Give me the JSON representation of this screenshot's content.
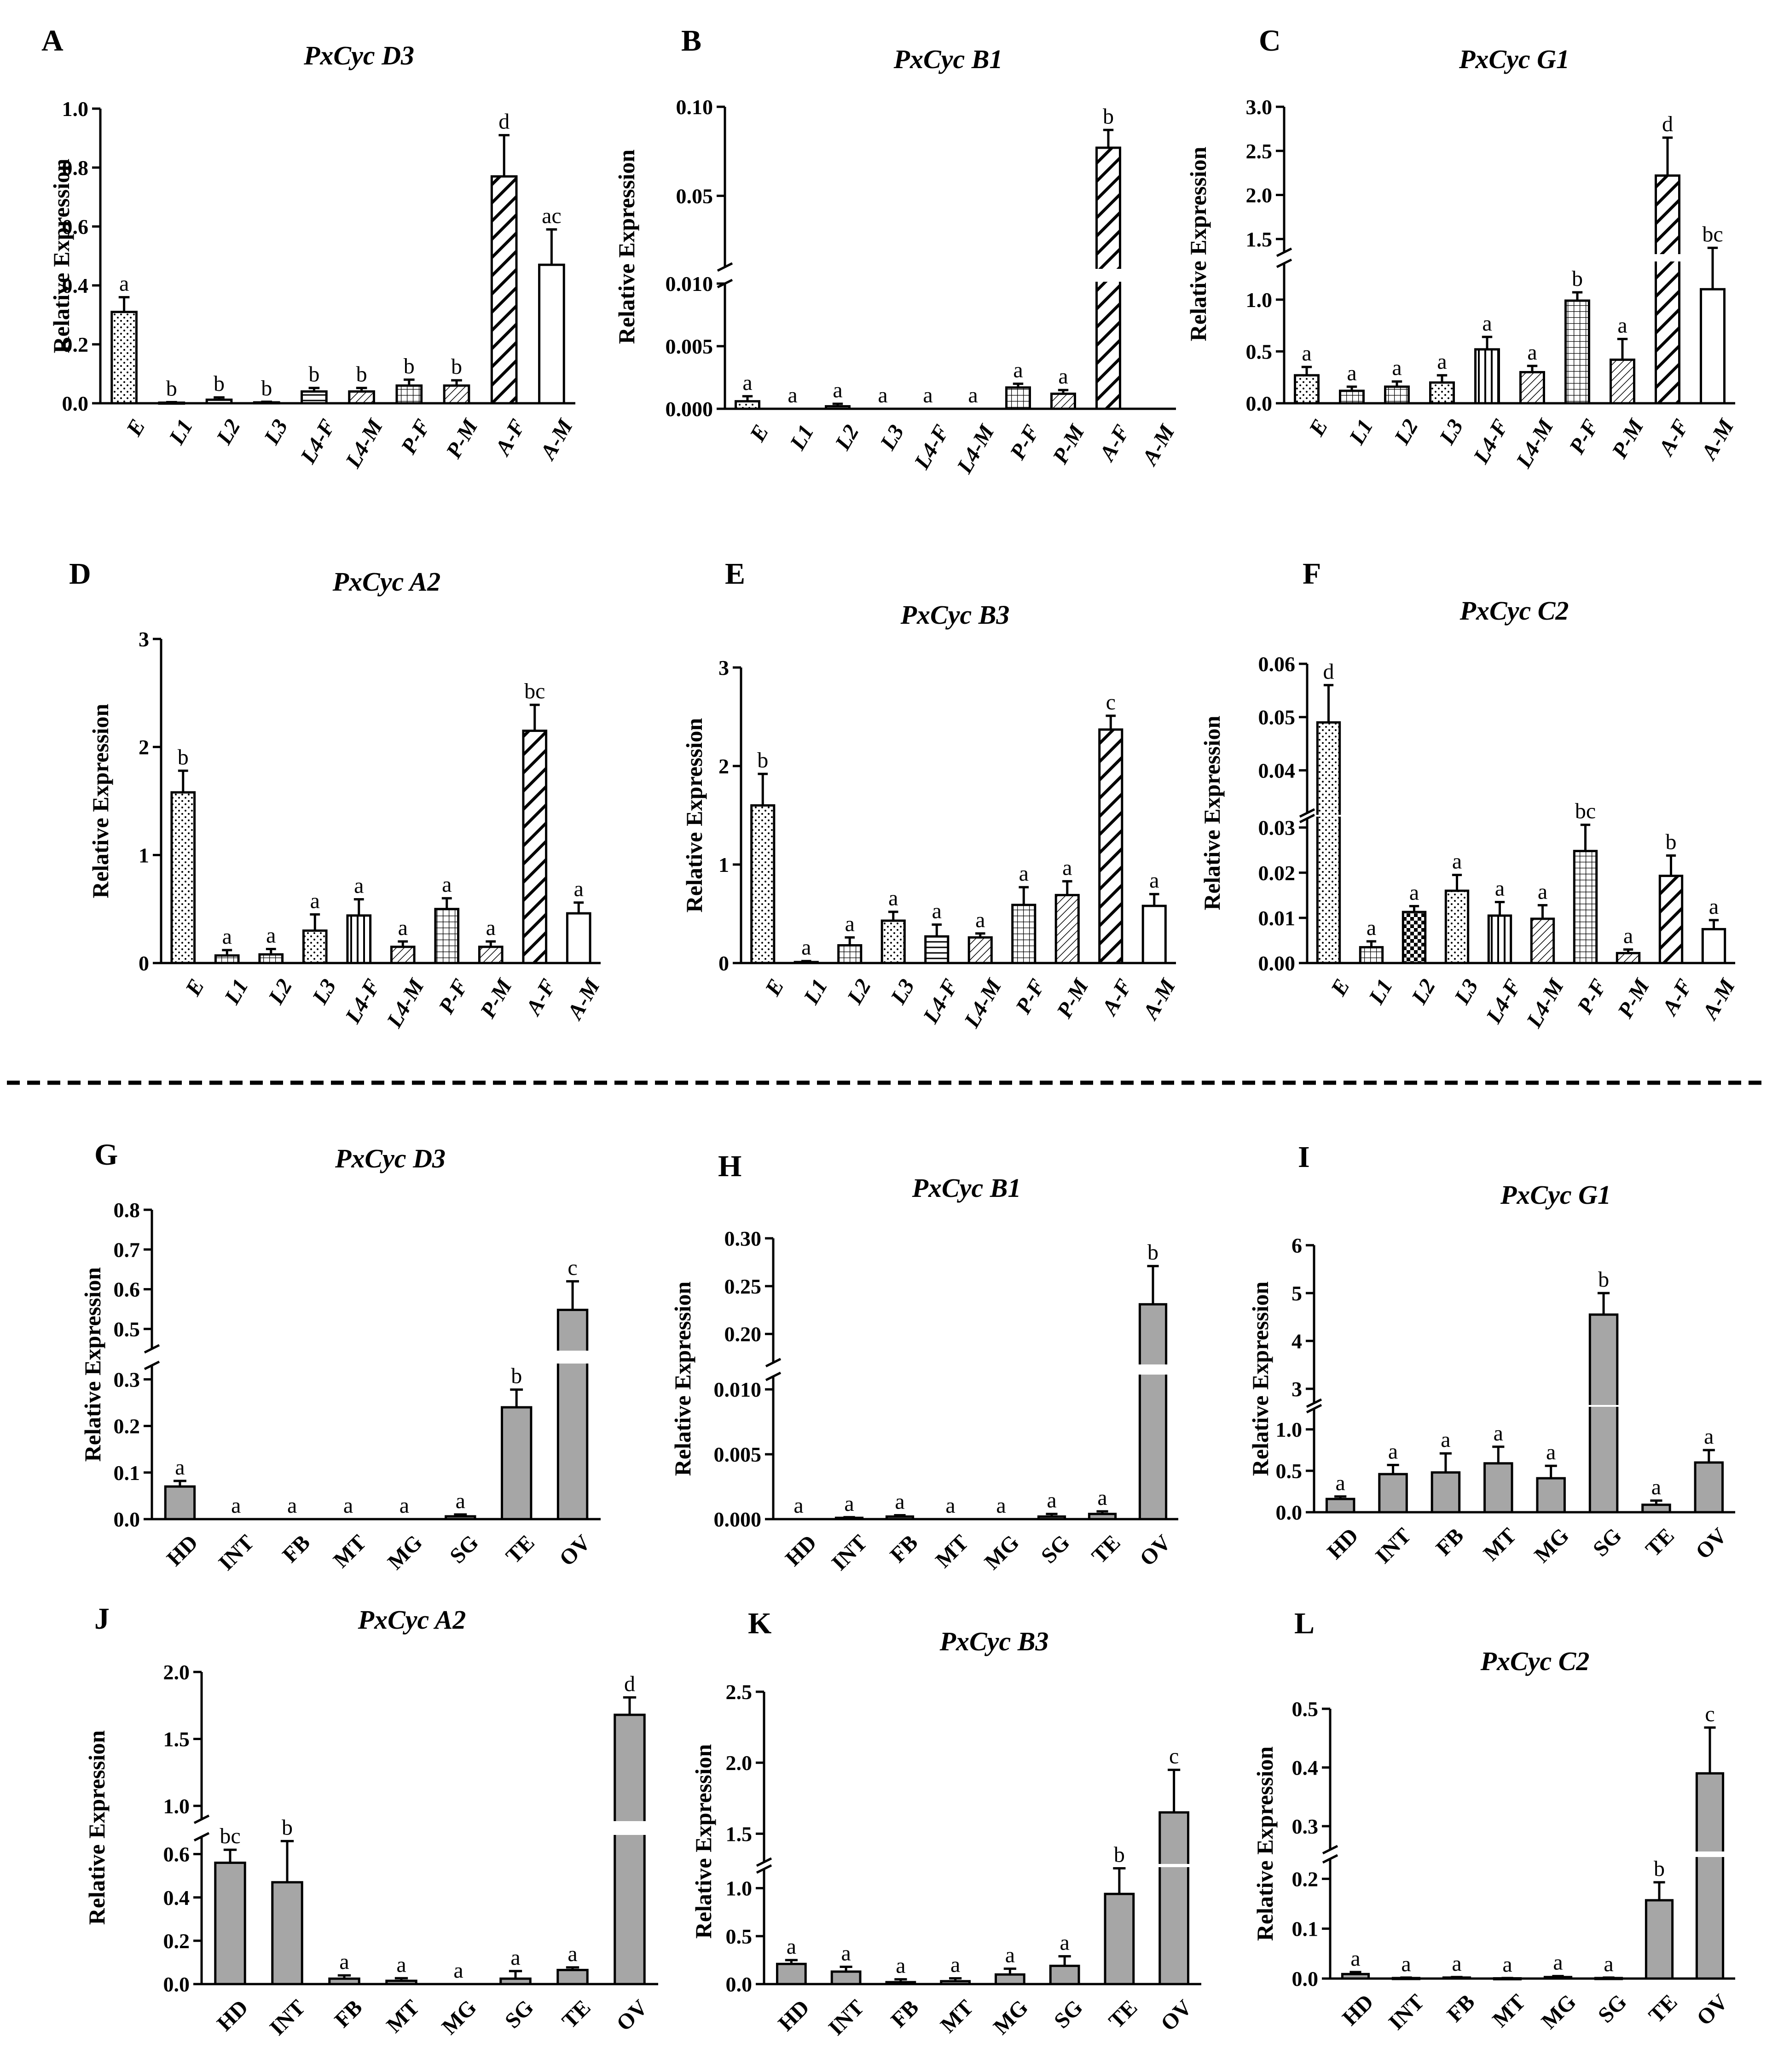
{
  "figure": {
    "colors": {
      "gray": "#a6a6a6",
      "white": "#ffffff",
      "ink": "#000000"
    }
  },
  "chart_data": [
    {
      "panel": "A",
      "type": "bar",
      "title": "PxCyc D3",
      "ylabel": "Relative Expression",
      "categories": [
        "E",
        "L1",
        "L2",
        "L3",
        "L4-F",
        "L4-M",
        "P-F",
        "P-M",
        "A-F",
        "A-M"
      ],
      "values": [
        0.31,
        0.002,
        0.012,
        0.003,
        0.04,
        0.04,
        0.06,
        0.06,
        0.77,
        0.47
      ],
      "errors": [
        0.05,
        0.002,
        0.008,
        0.002,
        0.012,
        0.012,
        0.02,
        0.018,
        0.14,
        0.12
      ],
      "labels": [
        "a",
        "b",
        "b",
        "b",
        "b",
        "b",
        "b",
        "b",
        "d",
        "ac"
      ],
      "patterns": [
        "dots",
        "plain",
        "plain",
        "plain",
        "hlines",
        "diag",
        "grid",
        "diag",
        "heavydiag",
        "plain"
      ],
      "ylim": [
        0,
        1.0
      ],
      "ticks": [
        "0.0",
        "0.2",
        "0.4",
        "0.6",
        "0.8",
        "1.0"
      ]
    },
    {
      "panel": "B",
      "type": "bar",
      "title": "PxCyc B1",
      "ylabel": "Relative Expression",
      "categories": [
        "E",
        "L1",
        "L2",
        "L3",
        "L4-F",
        "L4-M",
        "P-F",
        "P-M",
        "A-F",
        "A-M"
      ],
      "values": [
        0.0006,
        0,
        0.0002,
        0,
        0,
        0,
        0.0017,
        0.0012,
        0.077,
        0
      ],
      "errors": [
        0.0004,
        0,
        0.0002,
        0,
        0,
        0,
        0.0003,
        0.0003,
        0.01,
        0
      ],
      "labels": [
        "a",
        "a",
        "a",
        "a",
        "a",
        "a",
        "a",
        "a",
        "b",
        ""
      ],
      "patterns": [
        "dots",
        "plain",
        "plain",
        "plain",
        "hlines",
        "diag",
        "grid",
        "diag",
        "heavydiag",
        "plain"
      ],
      "ylim": [
        0,
        0.1
      ],
      "lower_range": [
        0,
        0.01
      ],
      "upper_range": [
        0.01,
        0.1
      ],
      "lower_ticks": [
        "0.000",
        "0.005",
        "0.010"
      ],
      "upper_ticks": [
        "0.05",
        "0.10"
      ]
    },
    {
      "panel": "C",
      "type": "bar",
      "title": "PxCyc G1",
      "ylabel": "Relative Expression",
      "categories": [
        "E",
        "L1",
        "L2",
        "L3",
        "L4-F",
        "L4-M",
        "P-F",
        "P-M",
        "A-F",
        "A-M"
      ],
      "values": [
        0.27,
        0.12,
        0.16,
        0.2,
        0.52,
        0.3,
        0.99,
        0.42,
        2.22,
        1.1
      ],
      "errors": [
        0.08,
        0.04,
        0.05,
        0.07,
        0.12,
        0.06,
        0.08,
        0.2,
        0.43,
        0.3
      ],
      "labels": [
        "a",
        "a",
        "a",
        "a",
        "a",
        "a",
        "b",
        "a",
        "d",
        "bc"
      ],
      "patterns": [
        "dots",
        "grid",
        "grid",
        "dots",
        "vlines",
        "diag",
        "grid",
        "diag",
        "heavydiag",
        "plain"
      ],
      "ylim": [
        0,
        3.0
      ],
      "lower_range": [
        0,
        1.35
      ],
      "upper_range": [
        1.35,
        3.0
      ],
      "lower_ticks": [
        "0.0",
        "0.5",
        "1.0"
      ],
      "upper_ticks": [
        "1.5",
        "2.0",
        "2.5",
        "3.0"
      ]
    },
    {
      "panel": "D",
      "type": "bar",
      "title": "PxCyc A2",
      "ylabel": "Relative Expression",
      "categories": [
        "E",
        "L1",
        "L2",
        "L3",
        "L4-F",
        "L4-M",
        "P-F",
        "P-M",
        "A-F",
        "A-M"
      ],
      "values": [
        1.58,
        0.07,
        0.08,
        0.3,
        0.44,
        0.15,
        0.5,
        0.15,
        2.15,
        0.46
      ],
      "errors": [
        0.2,
        0.05,
        0.05,
        0.15,
        0.15,
        0.05,
        0.1,
        0.05,
        0.24,
        0.1
      ],
      "labels": [
        "b",
        "a",
        "a",
        "a",
        "a",
        "a",
        "a",
        "a",
        "bc",
        "a"
      ],
      "patterns": [
        "dots",
        "grid",
        "grid",
        "dots",
        "vlines",
        "diag",
        "grid",
        "diag",
        "heavydiag",
        "plain"
      ],
      "ylim": [
        0,
        3
      ],
      "ticks": [
        "0",
        "1",
        "2",
        "3"
      ]
    },
    {
      "panel": "E",
      "type": "bar",
      "title": "PxCyc B3",
      "ylabel": "Relative Expression",
      "categories": [
        "E",
        "L1",
        "L2",
        "L3",
        "L4-F",
        "L4-M",
        "P-F",
        "P-M",
        "A-F",
        "A-M"
      ],
      "values": [
        1.6,
        0.01,
        0.18,
        0.43,
        0.27,
        0.26,
        0.59,
        0.69,
        2.37,
        0.58
      ],
      "errors": [
        0.32,
        0.01,
        0.08,
        0.09,
        0.12,
        0.04,
        0.18,
        0.14,
        0.14,
        0.12
      ],
      "labels": [
        "b",
        "a",
        "a",
        "a",
        "a",
        "a",
        "a",
        "a",
        "c",
        "a"
      ],
      "patterns": [
        "dots",
        "plain",
        "grid",
        "dots",
        "hlines",
        "diag",
        "grid",
        "diag",
        "heavydiag",
        "plain"
      ],
      "ylim": [
        0,
        3
      ],
      "ticks": [
        "0",
        "1",
        "2",
        "3"
      ]
    },
    {
      "panel": "F",
      "type": "bar",
      "title": "PxCyc C2",
      "ylabel": "Relative Expression",
      "categories": [
        "E",
        "L1",
        "L2",
        "L3",
        "L4-F",
        "L4-M",
        "P-F",
        "P-M",
        "A-F",
        "A-M"
      ],
      "values": [
        0.049,
        0.0035,
        0.0113,
        0.016,
        0.0105,
        0.0098,
        0.0248,
        0.0022,
        0.0193,
        0.0075
      ],
      "errors": [
        0.007,
        0.0013,
        0.0013,
        0.0035,
        0.003,
        0.003,
        0.0058,
        0.0008,
        0.0045,
        0.002
      ],
      "labels": [
        "d",
        "a",
        "a",
        "a",
        "a",
        "a",
        "bc",
        "a",
        "b",
        "a"
      ],
      "patterns": [
        "dots",
        "grid",
        "checker",
        "dots",
        "vlines",
        "diag",
        "grid",
        "diag",
        "heavydiag",
        "plain"
      ],
      "ylim": [
        0,
        0.06
      ],
      "lower_range": [
        0,
        0.032
      ],
      "upper_range": [
        0.032,
        0.06
      ],
      "lower_ticks": [
        "0.00",
        "0.01",
        "0.02",
        "0.03"
      ],
      "upper_ticks": [
        "0.04",
        "0.05",
        "0.06"
      ]
    },
    {
      "panel": "G",
      "type": "bar",
      "title": "PxCyc D3",
      "ylabel": "Relative Expression",
      "categories": [
        "HD",
        "INT",
        "FB",
        "MT",
        "MG",
        "SG",
        "TE",
        "OV"
      ],
      "values": [
        0.07,
        0.0,
        0.0,
        0.0,
        0.0,
        0.006,
        0.24,
        0.548
      ],
      "errors": [
        0.012,
        0,
        0,
        0,
        0,
        0.004,
        0.038,
        0.072
      ],
      "labels": [
        "a",
        "a",
        "a",
        "a",
        "a",
        "a",
        "b",
        "c"
      ],
      "ylim": [
        0,
        0.8
      ],
      "lower_range": [
        0,
        0.33
      ],
      "upper_range": [
        0.45,
        0.8
      ],
      "lower_ticks": [
        "0.0",
        "0.1",
        "0.2",
        "0.3"
      ],
      "upper_ticks": [
        "0.5",
        "0.6",
        "0.7",
        "0.8"
      ]
    },
    {
      "panel": "H",
      "type": "bar",
      "title": "PxCyc B1",
      "ylabel": "Relative Expression",
      "categories": [
        "HD",
        "INT",
        "FB",
        "MT",
        "MG",
        "SG",
        "TE",
        "OV"
      ],
      "values": [
        0,
        0.0001,
        0.0002,
        0,
        0,
        0.0002,
        0.0004,
        0.231
      ],
      "errors": [
        0,
        5e-05,
        0.0001,
        0,
        0,
        0.0002,
        0.0002,
        0.04
      ],
      "labels": [
        "a",
        "a",
        "a",
        "a",
        "a",
        "a",
        "a",
        "b"
      ],
      "ylim": [
        0,
        0.3
      ],
      "lower_range": [
        0,
        0.011
      ],
      "upper_range": [
        0.17,
        0.3
      ],
      "lower_ticks": [
        "0.000",
        "0.005",
        "0.010"
      ],
      "upper_ticks": [
        "0.20",
        "0.25",
        "0.30"
      ]
    },
    {
      "panel": "I",
      "type": "bar",
      "title": "PxCyc G1",
      "ylabel": "Relative Expression",
      "categories": [
        "HD",
        "INT",
        "FB",
        "MT",
        "MG",
        "SG",
        "TE",
        "OV"
      ],
      "values": [
        0.16,
        0.46,
        0.48,
        0.59,
        0.41,
        4.55,
        0.09,
        0.6
      ],
      "errors": [
        0.03,
        0.11,
        0.23,
        0.2,
        0.15,
        0.45,
        0.05,
        0.15
      ],
      "labels": [
        "a",
        "a",
        "a",
        "a",
        "a",
        "b",
        "a",
        "a"
      ],
      "ylim": [
        0,
        6
      ],
      "lower_range": [
        0,
        1.25
      ],
      "upper_range": [
        2.7,
        6
      ],
      "lower_ticks": [
        "0.0",
        "0.5",
        "1.0"
      ],
      "upper_ticks": [
        "3",
        "4",
        "5",
        "6"
      ]
    },
    {
      "panel": "J",
      "type": "bar",
      "title": "PxCyc A2",
      "ylabel": "Relative Expression",
      "categories": [
        "HD",
        "INT",
        "FB",
        "MT",
        "MG",
        "SG",
        "TE",
        "OV"
      ],
      "values": [
        0.56,
        0.47,
        0.025,
        0.015,
        0.0,
        0.025,
        0.065,
        1.68
      ],
      "errors": [
        0.06,
        0.19,
        0.015,
        0.012,
        0,
        0.035,
        0.012,
        0.13
      ],
      "labels": [
        "bc",
        "b",
        "a",
        "a",
        "a",
        "a",
        "a",
        "d"
      ],
      "ylim": [
        0,
        2.0
      ],
      "lower_range": [
        0,
        0.68
      ],
      "upper_range": [
        0.9,
        2.0
      ],
      "lower_ticks": [
        "0.0",
        "0.2",
        "0.4",
        "0.6"
      ],
      "upper_ticks": [
        "1.0",
        "1.5",
        "2.0"
      ]
    },
    {
      "panel": "K",
      "type": "bar",
      "title": "PxCyc B3",
      "ylabel": "Relative Expression",
      "categories": [
        "HD",
        "INT",
        "FB",
        "MT",
        "MG",
        "SG",
        "TE",
        "OV"
      ],
      "values": [
        0.21,
        0.13,
        0.02,
        0.03,
        0.1,
        0.19,
        0.94,
        1.65
      ],
      "errors": [
        0.04,
        0.05,
        0.03,
        0.03,
        0.06,
        0.1,
        0.27,
        0.3
      ],
      "labels": [
        "a",
        "a",
        "a",
        "a",
        "a",
        "a",
        "b",
        "c"
      ],
      "ylim": [
        0,
        2.5
      ],
      "lower_range": [
        0,
        1.2
      ],
      "upper_range": [
        1.3,
        2.5
      ],
      "lower_ticks": [
        "0.0",
        "0.5",
        "1.0"
      ],
      "upper_ticks": [
        "1.5",
        "2.0",
        "2.5"
      ]
    },
    {
      "panel": "L",
      "type": "bar",
      "title": "PxCyc C2",
      "ylabel": "Relative Expression",
      "categories": [
        "HD",
        "INT",
        "FB",
        "MT",
        "MG",
        "SG",
        "TE",
        "OV"
      ],
      "values": [
        0.009,
        0.001,
        0.002,
        0.0005,
        0.003,
        0.001,
        0.157,
        0.39
      ],
      "errors": [
        0.004,
        0.001,
        0.001,
        0.0005,
        0.002,
        0.001,
        0.036,
        0.078
      ],
      "labels": [
        "a",
        "a",
        "a",
        "a",
        "a",
        "a",
        "b",
        "c"
      ],
      "ylim": [
        0,
        0.5
      ],
      "lower_range": [
        0,
        0.24
      ],
      "upper_range": [
        0.26,
        0.5
      ],
      "lower_ticks": [
        "0.0",
        "0.1",
        "0.2"
      ],
      "upper_ticks": [
        "0.3",
        "0.4",
        "0.5"
      ]
    }
  ]
}
